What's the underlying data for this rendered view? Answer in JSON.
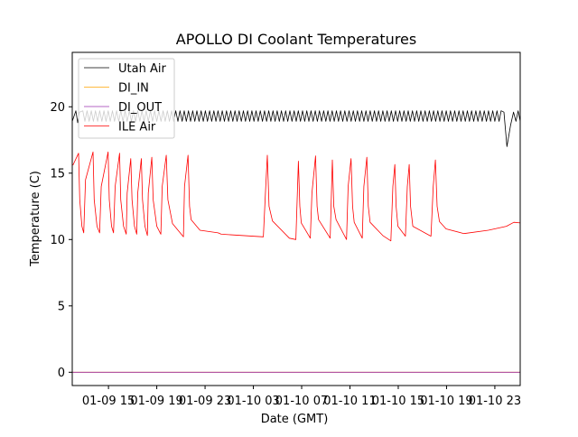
{
  "chart_data": {
    "type": "line",
    "title": "APOLLO DI Coolant Temperatures",
    "xlabel": "Date (GMT)",
    "ylabel": "Temperature (C)",
    "x_units": "hours since 01-09 00:00",
    "xlim": [
      12.0,
      49.1
    ],
    "ylim": [
      -1.0,
      24.1
    ],
    "yticks": [
      0,
      5,
      10,
      15,
      20
    ],
    "xticks": [
      {
        "value": 15,
        "label": "01-09 15"
      },
      {
        "value": 19,
        "label": "01-09 19"
      },
      {
        "value": 23,
        "label": "01-09 23"
      },
      {
        "value": 27,
        "label": "01-10 03"
      },
      {
        "value": 31,
        "label": "01-10 07"
      },
      {
        "value": 35,
        "label": "01-10 11"
      },
      {
        "value": 39,
        "label": "01-10 15"
      },
      {
        "value": 43,
        "label": "01-10 19"
      },
      {
        "value": 47,
        "label": "01-10 23"
      }
    ],
    "grid": false,
    "legend": {
      "placement": "top-left"
    },
    "series": [
      {
        "name": "Utah Air",
        "color": "#000000",
        "oscillation": {
          "low": 18.9,
          "high": 19.7,
          "period": 0.35,
          "start": 12.0,
          "end": 49.1
        },
        "overrides": [
          [
            12.3,
            19.7
          ],
          [
            12.45,
            18.8
          ],
          [
            12.6,
            19.6
          ],
          [
            47.75,
            19.6
          ],
          [
            48.0,
            17.0
          ],
          [
            48.3,
            18.6
          ],
          [
            48.55,
            19.6
          ]
        ]
      },
      {
        "name": "DI_IN",
        "color": "#ffa500",
        "points": [
          [
            12.0,
            0
          ],
          [
            49.1,
            0
          ]
        ]
      },
      {
        "name": "DI_OUT",
        "color": "#9b30b0",
        "points": [
          [
            12.0,
            0
          ],
          [
            49.1,
            0
          ]
        ]
      },
      {
        "name": "ILE Air",
        "color": "#ff0000",
        "points": [
          [
            12.05,
            15.6
          ],
          [
            12.52,
            16.5
          ],
          [
            12.62,
            13.0
          ],
          [
            12.8,
            11.0
          ],
          [
            12.95,
            10.5
          ],
          [
            13.1,
            14.5
          ],
          [
            13.72,
            16.6
          ],
          [
            13.82,
            13.0
          ],
          [
            14.05,
            11.0
          ],
          [
            14.27,
            10.5
          ],
          [
            14.4,
            14.0
          ],
          [
            14.97,
            16.6
          ],
          [
            15.07,
            13.0
          ],
          [
            15.25,
            11.0
          ],
          [
            15.42,
            10.5
          ],
          [
            15.55,
            14.0
          ],
          [
            15.92,
            16.5
          ],
          [
            16.02,
            13.0
          ],
          [
            16.25,
            11.0
          ],
          [
            16.47,
            10.4
          ],
          [
            16.55,
            13.5
          ],
          [
            16.85,
            16.1
          ],
          [
            16.95,
            13.0
          ],
          [
            17.15,
            11.0
          ],
          [
            17.34,
            10.4
          ],
          [
            17.42,
            13.5
          ],
          [
            17.72,
            16.1
          ],
          [
            17.82,
            13.0
          ],
          [
            18.02,
            11.0
          ],
          [
            18.22,
            10.3
          ],
          [
            18.3,
            13.5
          ],
          [
            18.59,
            16.2
          ],
          [
            18.7,
            13.0
          ],
          [
            19.0,
            11.0
          ],
          [
            19.34,
            10.4
          ],
          [
            19.45,
            14.0
          ],
          [
            19.79,
            16.35
          ],
          [
            19.92,
            13.0
          ],
          [
            20.3,
            11.2
          ],
          [
            21.21,
            10.2
          ],
          [
            21.3,
            14.0
          ],
          [
            21.59,
            16.35
          ],
          [
            21.72,
            12.5
          ],
          [
            21.84,
            11.5
          ],
          [
            22.58,
            10.7
          ],
          [
            24.08,
            10.5
          ],
          [
            24.34,
            10.4
          ],
          [
            27.83,
            10.2
          ],
          [
            28.0,
            13.5
          ],
          [
            28.16,
            16.35
          ],
          [
            28.3,
            12.5
          ],
          [
            28.58,
            11.4
          ],
          [
            29.98,
            10.1
          ],
          [
            30.52,
            10.0
          ],
          [
            30.73,
            15.9
          ],
          [
            30.85,
            12.5
          ],
          [
            30.97,
            11.25
          ],
          [
            31.72,
            10.1
          ],
          [
            31.85,
            13.5
          ],
          [
            32.15,
            16.3
          ],
          [
            32.28,
            12.5
          ],
          [
            32.4,
            11.5
          ],
          [
            33.36,
            10.1
          ],
          [
            33.54,
            16.0
          ],
          [
            33.66,
            12.5
          ],
          [
            33.85,
            11.5
          ],
          [
            34.72,
            10.0
          ],
          [
            34.85,
            14.0
          ],
          [
            35.09,
            16.1
          ],
          [
            35.22,
            12.5
          ],
          [
            35.35,
            11.3
          ],
          [
            36.02,
            10.1
          ],
          [
            36.15,
            14.0
          ],
          [
            36.4,
            16.2
          ],
          [
            36.52,
            12.5
          ],
          [
            36.67,
            11.3
          ],
          [
            37.72,
            10.3
          ],
          [
            38.39,
            9.9
          ],
          [
            38.55,
            14.0
          ],
          [
            38.72,
            15.65
          ],
          [
            38.82,
            12.5
          ],
          [
            38.97,
            11.0
          ],
          [
            39.59,
            10.25
          ],
          [
            39.75,
            14.0
          ],
          [
            39.91,
            15.65
          ],
          [
            40.02,
            12.5
          ],
          [
            40.21,
            11.0
          ],
          [
            41.71,
            10.25
          ],
          [
            41.9,
            14.0
          ],
          [
            42.08,
            16.0
          ],
          [
            42.22,
            12.5
          ],
          [
            42.41,
            11.35
          ],
          [
            42.96,
            10.8
          ],
          [
            44.45,
            10.45
          ],
          [
            46.46,
            10.7
          ],
          [
            47.96,
            11.0
          ],
          [
            48.58,
            11.3
          ],
          [
            49.1,
            11.25
          ]
        ]
      }
    ]
  }
}
